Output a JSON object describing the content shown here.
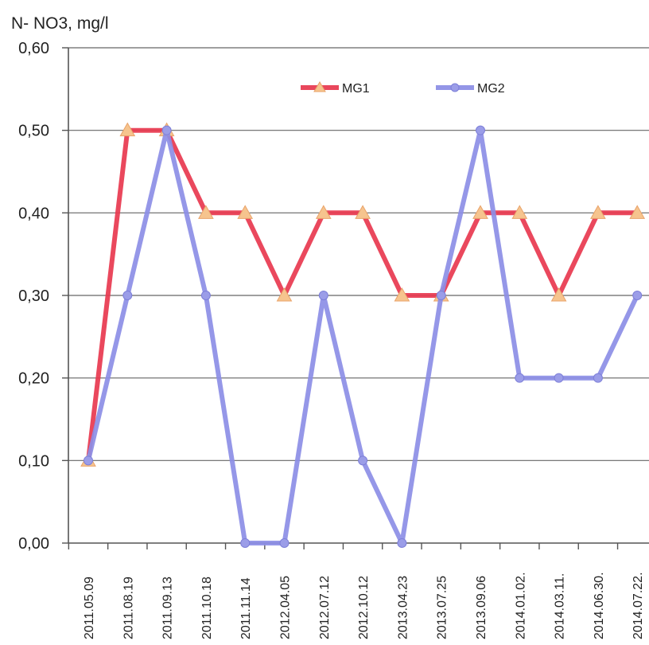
{
  "chart_data": {
    "type": "line",
    "ylabel": "N- NO3, mg/l",
    "xlabel": "",
    "ylim": [
      0,
      0.6
    ],
    "yticks": [
      "0,00",
      "0,10",
      "0,20",
      "0,30",
      "0,40",
      "0,50",
      "0,60"
    ],
    "grid": true,
    "legend_position": "top-center",
    "categories": [
      "2011.05.09",
      "2011.08.19",
      "2011.09.13",
      "2011.10.18",
      "2011.11.14",
      "2012.04.05",
      "2012.07.12",
      "2012.10.12",
      "2013.04.23",
      "2013.07.25",
      "2013.09.06",
      "2014.01.02.",
      "2014.03.11.",
      "2014.06.30.",
      "2014.07.22."
    ],
    "series": [
      {
        "name": "MG1",
        "color": "#e8384f",
        "marker": "triangle",
        "marker_color": "#f6c48e",
        "values": [
          0.1,
          0.5,
          0.5,
          0.4,
          0.4,
          0.3,
          0.4,
          0.4,
          0.3,
          0.3,
          0.4,
          0.4,
          0.3,
          0.4,
          0.4
        ]
      },
      {
        "name": "MG2",
        "color": "#8c8ee6",
        "marker": "circle",
        "marker_color": "#9b9de8",
        "values": [
          0.1,
          0.3,
          0.5,
          0.3,
          0.0,
          0.0,
          0.3,
          0.1,
          0.0,
          0.3,
          0.5,
          0.2,
          0.2,
          0.2,
          0.3
        ]
      }
    ]
  }
}
